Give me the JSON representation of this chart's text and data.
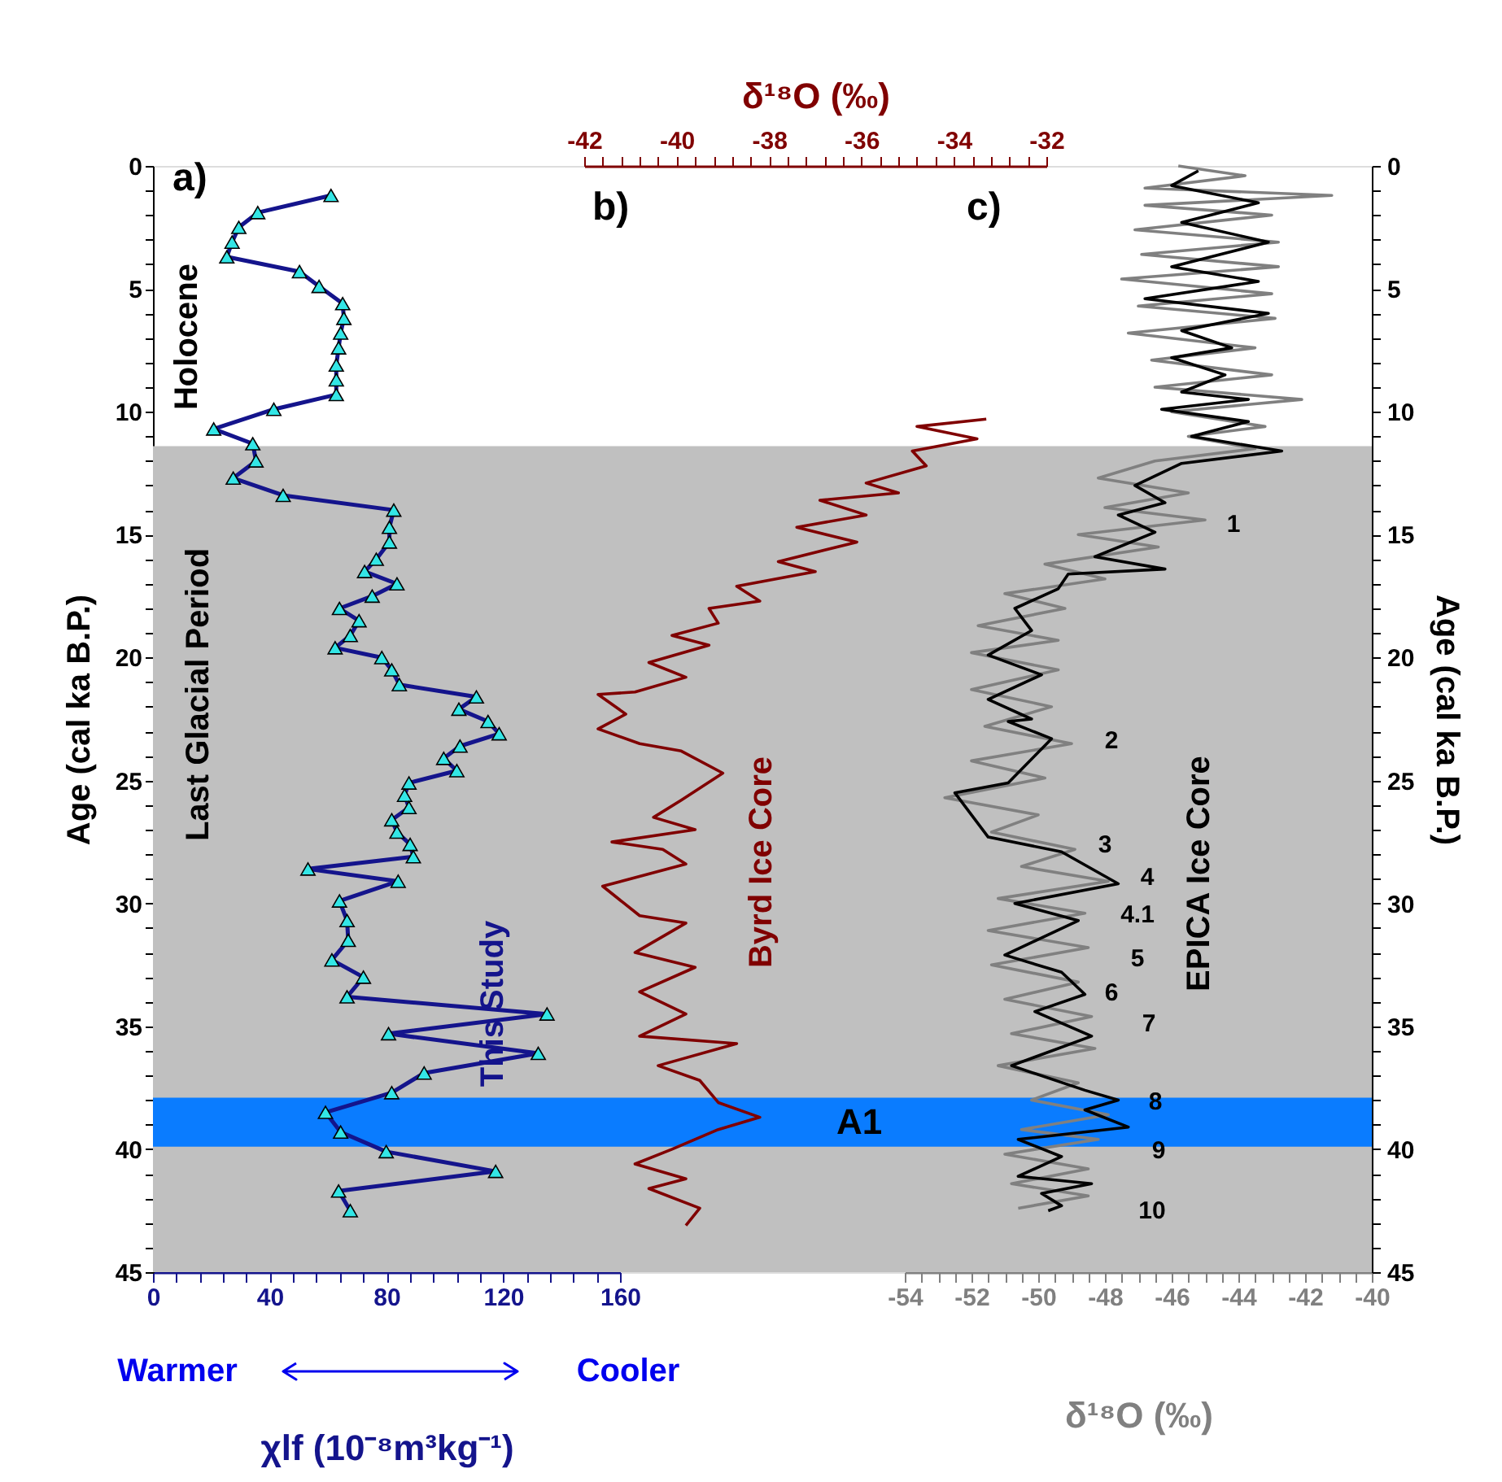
{
  "chart_data": [
    {
      "type": "line",
      "xlabel": "χlf (10⁻⁸m³kg⁻¹)",
      "ylabel": "Age (cal ka B.P.)",
      "xlim": [
        0,
        160
      ],
      "xticks": [
        0,
        {
          "value": 8,
          "label": null
        },
        {
          "value": 16,
          "label": null
        },
        {
          "value": 24,
          "label": null
        },
        {
          "value": 32,
          "label": null
        },
        40,
        {
          "value": 48,
          "label": null
        },
        {
          "value": 56,
          "label": null
        },
        {
          "value": 64,
          "label": null
        },
        {
          "value": 72,
          "label": null
        },
        80,
        {
          "value": 88,
          "label": null
        },
        {
          "value": 96,
          "label": null
        },
        {
          "value": 104,
          "label": null
        },
        {
          "value": 112,
          "label": null
        },
        120,
        {
          "value": 128,
          "label": null
        },
        {
          "value": 136,
          "label": null
        },
        {
          "value": 144,
          "label": null
        },
        {
          "value": 152,
          "label": null
        },
        160
      ],
      "ylim": [
        45,
        0
      ],
      "yticks": [
        0,
        {
          "value": 1,
          "label": null
        },
        {
          "value": 2,
          "label": null
        },
        {
          "value": 3,
          "label": null
        },
        {
          "value": 4,
          "label": null
        },
        5,
        {
          "value": 6,
          "label": null
        },
        {
          "value": 7,
          "label": null
        },
        {
          "value": 8,
          "label": null
        },
        {
          "value": 9,
          "label": null
        },
        10,
        {
          "value": 11,
          "label": null
        },
        {
          "value": 12,
          "label": null
        },
        {
          "value": 13,
          "label": null
        },
        {
          "value": 14,
          "label": null
        },
        15,
        {
          "value": 16,
          "label": null
        },
        {
          "value": 17,
          "label": null
        },
        {
          "value": 18,
          "label": null
        },
        {
          "value": 19,
          "label": null
        },
        20,
        {
          "value": 21,
          "label": null
        },
        {
          "value": 22,
          "label": null
        },
        {
          "value": 23,
          "label": null
        },
        {
          "value": 24,
          "label": null
        },
        25,
        {
          "value": 26,
          "label": null
        },
        {
          "value": 27,
          "label": null
        },
        {
          "value": 28,
          "label": null
        },
        {
          "value": 29,
          "label": null
        },
        30,
        {
          "value": 31,
          "label": null
        },
        {
          "value": 32,
          "label": null
        },
        {
          "value": 33,
          "label": null
        },
        {
          "value": 34,
          "label": null
        },
        35,
        {
          "value": 36,
          "label": null
        },
        {
          "value": 37,
          "label": null
        },
        {
          "value": 38,
          "label": null
        },
        {
          "value": 39,
          "label": null
        },
        40,
        {
          "value": 41,
          "label": null
        },
        {
          "value": 42,
          "label": null
        },
        {
          "value": 43,
          "label": null
        },
        {
          "value": 44,
          "label": null
        },
        45
      ],
      "marker": "triangle",
      "series": [
        {
          "name": "This Study",
          "color": "#14148c",
          "x": [
            61,
            35.9,
            29.4,
            27.1,
            25.3,
            50.2,
            56.9,
            65,
            65.4,
            64.3,
            63.6,
            62.8,
            62.8,
            62.8,
            41.4,
            20.8,
            34.2,
            35.3,
            27.5,
            44.6,
            82.5,
            81,
            81,
            76.5,
            72.5,
            83.6,
            75.1,
            63.9,
            70.6,
            67.6,
            62.4,
            78.4,
            81.8,
            84.4,
            110.8,
            104.8,
            114.8,
            118.6,
            105.2,
            99.6,
            104.1,
            87.7,
            86.2,
            87.7,
            81.8,
            83.6,
            88.1,
            89.2,
            53.1,
            84,
            63.9,
            66.5,
            66.9,
            61.3,
            72.1,
            66.5,
            135,
            80.7,
            132,
            92.9,
            81.8,
            59.1,
            64.3,
            79.9,
            117.4,
            63.6,
            67.6
          ],
          "values": [
            1.2,
            1.9,
            2.5,
            3.1,
            3.7,
            4.3,
            4.9,
            5.6,
            6.2,
            6.8,
            7.4,
            8.1,
            8.7,
            9.3,
            9.9,
            10.7,
            11.3,
            12.0,
            12.7,
            13.4,
            14.0,
            14.7,
            15.3,
            16.0,
            16.5,
            17.0,
            17.5,
            18.0,
            18.5,
            19.1,
            19.6,
            20.0,
            20.5,
            21.1,
            21.6,
            22.1,
            22.6,
            23.1,
            23.6,
            24.1,
            24.6,
            25.1,
            25.6,
            26.1,
            26.6,
            27.1,
            27.6,
            28.1,
            28.6,
            29.1,
            29.9,
            30.7,
            31.5,
            32.3,
            33.0,
            33.8,
            34.5,
            35.3,
            36.1,
            36.9,
            37.7,
            38.5,
            39.3,
            40.1,
            40.9,
            41.7,
            42.5
          ]
        }
      ],
      "bands": [
        {
          "axis": "y",
          "from": 11.4,
          "to": 45,
          "label": "Last Glacial Period",
          "color": "#c0c0c0"
        },
        {
          "axis": "y",
          "from": 37.9,
          "to": 39.9,
          "label": "A1",
          "color": "#0a7cff"
        }
      ],
      "annotations": [
        "a)",
        "Holocene",
        "Warmer",
        "Cooler"
      ]
    },
    {
      "type": "line",
      "xlabel": "δ¹⁸O (‰)",
      "xlim": [
        -42,
        -32
      ],
      "xticks": [
        -42,
        {
          "value": -41.6,
          "label": null
        },
        {
          "value": -41.2,
          "label": null
        },
        {
          "value": -40.8,
          "label": null
        },
        {
          "value": -40.4,
          "label": null
        },
        -40,
        {
          "value": -39.6,
          "label": null
        },
        {
          "value": -39.2,
          "label": null
        },
        {
          "value": -38.8,
          "label": null
        },
        {
          "value": -38.4,
          "label": null
        },
        -38,
        {
          "value": -37.6,
          "label": null
        },
        {
          "value": -37.2,
          "label": null
        },
        {
          "value": -36.8,
          "label": null
        },
        {
          "value": -36.4,
          "label": null
        },
        -36,
        {
          "value": -35.6,
          "label": null
        },
        {
          "value": -35.2,
          "label": null
        },
        {
          "value": -34.8,
          "label": null
        },
        {
          "value": -34.4,
          "label": null
        },
        -34,
        {
          "value": -33.6,
          "label": null
        },
        {
          "value": -33.2,
          "label": null
        },
        {
          "value": -32.8,
          "label": null
        },
        {
          "value": -32.4,
          "label": null
        },
        -32
      ],
      "ylim": [
        45,
        0
      ],
      "tick_labels": "x",
      "series": [
        {
          "name": "Byrd Ice Core",
          "color": "#800000",
          "x": [
            -33.3,
            -34.8,
            -33.5,
            -34.9,
            -34.6,
            -35.9,
            -35.2,
            -36.9,
            -35.9,
            -37.4,
            -36.1,
            -37.8,
            -37.0,
            -38.7,
            -38.2,
            -39.3,
            -39.1,
            -40.1,
            -39.3,
            -40.6,
            -39.8,
            -40.9,
            -41.7,
            -41.1,
            -41.7,
            -40.8,
            -39.9,
            -39.0,
            -39.9,
            -40.5,
            -39.6,
            -41.4,
            -40.3,
            -39.8,
            -41.6,
            -40.8,
            -39.8,
            -40.9,
            -39.6,
            -40.8,
            -39.8,
            -40.8,
            -38.7,
            -40.4,
            -39.5,
            -39.1,
            -38.2,
            -39.1,
            -40.1,
            -40.9,
            -39.8,
            -40.6,
            -39.5,
            -39.8
          ],
          "values": [
            10.3,
            10.6,
            11.1,
            11.6,
            12.2,
            12.9,
            13.3,
            13.6,
            14.2,
            14.7,
            15.3,
            16.1,
            16.5,
            17.1,
            17.7,
            18.0,
            18.6,
            19.1,
            19.5,
            20.2,
            20.8,
            21.4,
            21.5,
            22.3,
            22.9,
            23.5,
            23.8,
            24.7,
            25.8,
            26.5,
            27.0,
            27.5,
            27.8,
            28.4,
            29.3,
            30.5,
            30.8,
            32.0,
            32.6,
            33.6,
            34.5,
            35.4,
            35.7,
            36.6,
            37.2,
            38.1,
            38.7,
            39.2,
            40.0,
            40.6,
            41.2,
            41.6,
            42.4,
            43.1
          ]
        }
      ],
      "annotations": [
        "b)"
      ]
    },
    {
      "type": "line",
      "xlabel": "δ¹⁸O (‰)",
      "xlim": [
        -54,
        -40
      ],
      "xticks": [
        -54,
        {
          "value": -53.5,
          "label": null
        },
        {
          "value": -53,
          "label": null
        },
        {
          "value": -52.5,
          "label": null
        },
        -52,
        {
          "value": -51.5,
          "label": null
        },
        {
          "value": -51,
          "label": null
        },
        {
          "value": -50.5,
          "label": null
        },
        -50,
        {
          "value": -49.5,
          "label": null
        },
        {
          "value": -49,
          "label": null
        },
        {
          "value": -48.5,
          "label": null
        },
        -48,
        {
          "value": -47.5,
          "label": null
        },
        {
          "value": -47,
          "label": null
        },
        {
          "value": -46.5,
          "label": null
        },
        -46,
        {
          "value": -45.5,
          "label": null
        },
        {
          "value": -45,
          "label": null
        },
        {
          "value": -44.5,
          "label": null
        },
        -44,
        {
          "value": -43.5,
          "label": null
        },
        {
          "value": -43,
          "label": null
        },
        {
          "value": -42.5,
          "label": null
        },
        -42,
        {
          "value": -41.5,
          "label": null
        },
        {
          "value": -41,
          "label": null
        },
        {
          "value": -40.5,
          "label": null
        },
        -40
      ],
      "ylabel": "Age (cal ka B.P.)",
      "ylim": [
        45,
        0
      ],
      "yticks": [
        0,
        {
          "value": 1,
          "label": null
        },
        {
          "value": 2,
          "label": null
        },
        {
          "value": 3,
          "label": null
        },
        {
          "value": 4,
          "label": null
        },
        5,
        {
          "value": 6,
          "label": null
        },
        {
          "value": 7,
          "label": null
        },
        {
          "value": 8,
          "label": null
        },
        {
          "value": 9,
          "label": null
        },
        10,
        {
          "value": 11,
          "label": null
        },
        {
          "value": 12,
          "label": null
        },
        {
          "value": 13,
          "label": null
        },
        {
          "value": 14,
          "label": null
        },
        15,
        {
          "value": 16,
          "label": null
        },
        {
          "value": 17,
          "label": null
        },
        {
          "value": 18,
          "label": null
        },
        {
          "value": 19,
          "label": null
        },
        20,
        {
          "value": 21,
          "label": null
        },
        {
          "value": 22,
          "label": null
        },
        {
          "value": 23,
          "label": null
        },
        {
          "value": 24,
          "label": null
        },
        25,
        {
          "value": 26,
          "label": null
        },
        {
          "value": 27,
          "label": null
        },
        {
          "value": 28,
          "label": null
        },
        {
          "value": 29,
          "label": null
        },
        30,
        {
          "value": 31,
          "label": null
        },
        {
          "value": 32,
          "label": null
        },
        {
          "value": 33,
          "label": null
        },
        {
          "value": 34,
          "label": null
        },
        35,
        {
          "value": 36,
          "label": null
        },
        {
          "value": 37,
          "label": null
        },
        {
          "value": 38,
          "label": null
        },
        {
          "value": 39,
          "label": null
        },
        40,
        {
          "value": 41,
          "label": null
        },
        {
          "value": 42,
          "label": null
        },
        {
          "value": 43,
          "label": null
        },
        {
          "value": 44,
          "label": null
        },
        45
      ],
      "series": [
        {
          "color": "#808080",
          "x": [
            -45.8,
            -43.8,
            -46.8,
            -41.2,
            -46.8,
            -43.0,
            -47.1,
            -42.8,
            -46.9,
            -42.8,
            -47.5,
            -43.0,
            -47.0,
            -42.9,
            -47.3,
            -43.5,
            -46.6,
            -43.0,
            -46.5,
            -42.1,
            -46.0,
            -43.2,
            -45.5,
            -43.5,
            -46.5,
            -48.2,
            -45.5,
            -48.0,
            -45.0,
            -48.8,
            -46.4,
            -49.8,
            -48.0,
            -51.0,
            -49.2,
            -51.8,
            -49.4,
            -52.0,
            -49.4,
            -52.0,
            -49.6,
            -51.6,
            -49.0,
            -52.0,
            -49.8,
            -52.8,
            -50.0,
            -51.4,
            -48.9,
            -50.5,
            -47.9,
            -51.2,
            -48.6,
            -51.5,
            -48.5,
            -51.4,
            -48.8,
            -51.0,
            -48.4,
            -50.8,
            -48.3,
            -51.2,
            -48.8,
            -50.2,
            -47.9,
            -50.5,
            -48.2,
            -51.0,
            -48.5,
            -50.8,
            -48.5,
            -50.6
          ],
          "values": [
            0,
            0.4,
            0.9,
            1.2,
            1.6,
            2.0,
            2.6,
            3.1,
            3.6,
            4.1,
            4.6,
            5.2,
            5.7,
            6.2,
            6.8,
            7.4,
            7.9,
            8.5,
            9.0,
            9.5,
            10.0,
            10.6,
            11.0,
            11.5,
            12.0,
            12.7,
            13.3,
            13.9,
            14.4,
            15.0,
            15.5,
            16.2,
            16.8,
            17.4,
            18.0,
            18.7,
            19.3,
            19.8,
            20.5,
            21.3,
            22.0,
            22.8,
            23.5,
            24.2,
            24.9,
            25.7,
            26.4,
            27.1,
            27.8,
            28.5,
            29.1,
            29.8,
            30.4,
            31.1,
            31.8,
            32.5,
            33.2,
            33.9,
            34.6,
            35.3,
            35.9,
            36.6,
            37.3,
            38.0,
            38.6,
            39.2,
            39.6,
            40.2,
            40.8,
            41.4,
            41.9,
            42.4
          ]
        },
        {
          "name": "EPICA Ice Core",
          "color": "#000000",
          "x": [
            -45.2,
            -46.0,
            -43.4,
            -45.7,
            -43.1,
            -46.0,
            -43.4,
            -46.8,
            -43.1,
            -45.7,
            -44.2,
            -46.0,
            -44.4,
            -45.7,
            -43.7,
            -46.3,
            -43.7,
            -45.4,
            -42.7,
            -45.7,
            -47.1,
            -46.2,
            -47.6,
            -46.5,
            -48.3,
            -46.2,
            -49.1,
            -49.4,
            -50.7,
            -50.2,
            -51.5,
            -49.9,
            -51.5,
            -50.2,
            -50.9,
            -49.6,
            -50.9,
            -52.5,
            -51.5,
            -49.3,
            -47.6,
            -50.7,
            -48.8,
            -51.0,
            -49.3,
            -48.6,
            -50.1,
            -48.4,
            -50.8,
            -48.6,
            -47.6,
            -48.6,
            -47.3,
            -50.6,
            -49.3,
            -50.6,
            -48.4,
            -49.9,
            -49.3,
            -49.7
          ],
          "values": [
            0.2,
            0.8,
            1.5,
            2.3,
            3.1,
            4.1,
            4.7,
            5.4,
            6.0,
            6.7,
            7.4,
            7.8,
            8.5,
            9.2,
            9.5,
            9.9,
            10.4,
            11.0,
            11.6,
            12.1,
            13.0,
            13.7,
            14.2,
            14.9,
            15.9,
            16.4,
            16.6,
            17.2,
            18.0,
            18.9,
            19.9,
            20.7,
            21.7,
            22.5,
            22.6,
            23.3,
            25.1,
            25.5,
            27.3,
            27.9,
            29.2,
            30.0,
            30.7,
            32.1,
            32.8,
            33.7,
            34.4,
            35.4,
            36.6,
            37.6,
            38.0,
            38.4,
            39.1,
            39.6,
            40.3,
            41.1,
            41.4,
            41.8,
            42.3,
            42.5
          ]
        }
      ],
      "annotations": [
        "c)",
        "1",
        "2",
        "3",
        "4",
        "4.1",
        "5",
        "6",
        "7",
        "8",
        "9",
        "10"
      ]
    }
  ]
}
